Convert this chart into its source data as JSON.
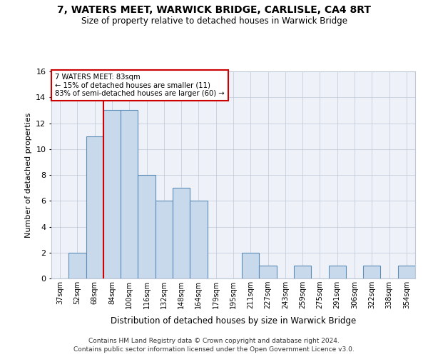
{
  "title": "7, WATERS MEET, WARWICK BRIDGE, CARLISLE, CA4 8RT",
  "subtitle": "Size of property relative to detached houses in Warwick Bridge",
  "xlabel": "Distribution of detached houses by size in Warwick Bridge",
  "ylabel": "Number of detached properties",
  "categories": [
    "37sqm",
    "52sqm",
    "68sqm",
    "84sqm",
    "100sqm",
    "116sqm",
    "132sqm",
    "148sqm",
    "164sqm",
    "179sqm",
    "195sqm",
    "211sqm",
    "227sqm",
    "243sqm",
    "259sqm",
    "275sqm",
    "291sqm",
    "306sqm",
    "322sqm",
    "338sqm",
    "354sqm"
  ],
  "values": [
    0,
    2,
    11,
    13,
    13,
    8,
    6,
    7,
    6,
    0,
    0,
    2,
    1,
    0,
    1,
    0,
    1,
    0,
    1,
    0,
    1
  ],
  "bar_color": "#c8d9eb",
  "bar_edge_color": "#5b8db8",
  "red_line_x": 2.5,
  "annotation_text_line1": "7 WATERS MEET: 83sqm",
  "annotation_text_line2": "← 15% of detached houses are smaller (11)",
  "annotation_text_line3": "83% of semi-detached houses are larger (60) →",
  "annotation_box_color": "#cc0000",
  "ylim": [
    0,
    16
  ],
  "yticks": [
    0,
    2,
    4,
    6,
    8,
    10,
    12,
    14,
    16
  ],
  "footer_line1": "Contains HM Land Registry data © Crown copyright and database right 2024.",
  "footer_line2": "Contains public sector information licensed under the Open Government Licence v3.0.",
  "bg_color": "#eef2f8",
  "grid_color": "#c0c8d8"
}
